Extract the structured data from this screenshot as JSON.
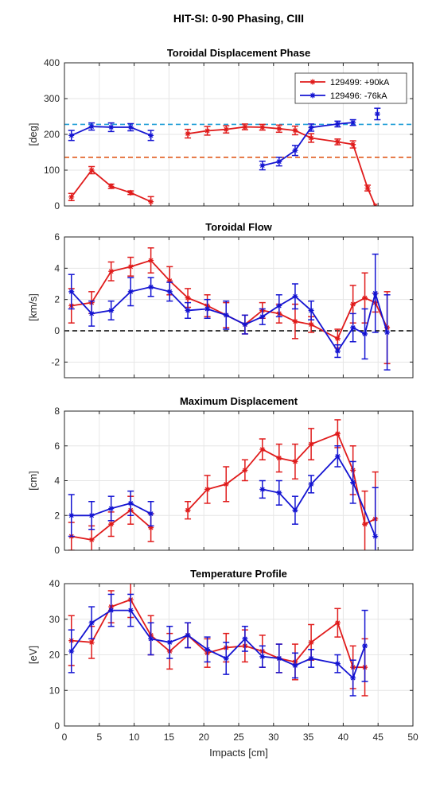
{
  "figure": {
    "suptitle": "HIT-SI: 0-90 Phasing, CIII",
    "xlabel": "Impacts [cm]",
    "xticks": [
      0,
      5,
      10,
      15,
      20,
      25,
      30,
      35,
      40,
      45,
      50
    ],
    "xlim": [
      0,
      50
    ]
  },
  "colors": {
    "red": "#e01b1b",
    "blue": "#1414d2",
    "grid": "#e6e6e6",
    "axis": "#262626"
  },
  "legend": {
    "placement": "top-right",
    "entries": [
      "129499: +90kA",
      "129496: -76kA"
    ]
  },
  "chart_data": [
    {
      "type": "line",
      "title": "Toroidal Displacement Phase",
      "ylabel": "[deg]",
      "ylim": [
        0,
        400
      ],
      "yticks": [
        0,
        100,
        200,
        300,
        400
      ],
      "grid": true,
      "hlines": [
        {
          "y": 228,
          "color": "#1f9ed6",
          "style": "dashed"
        },
        {
          "y": 136,
          "color": "#e0591b",
          "style": "dashed"
        }
      ],
      "series": [
        {
          "name": "129499: +90kA",
          "color": "#e01b1b",
          "segments": [
            [
              [
                1,
                25,
                10
              ],
              [
                3.9,
                100,
                10
              ],
              [
                6.7,
                55,
                6
              ],
              [
                9.5,
                37,
                5
              ],
              [
                12.4,
                12,
                14
              ]
            ],
            [
              [
                17.7,
                202,
                12
              ],
              [
                20.5,
                210,
                12
              ],
              [
                23.2,
                214,
                10
              ],
              [
                25.9,
                221,
                8
              ],
              [
                28.4,
                220,
                8
              ],
              [
                30.8,
                216,
                10
              ],
              [
                33.1,
                211,
                12
              ],
              [
                35.4,
                190,
                12
              ],
              [
                39.2,
                179,
                8
              ],
              [
                41.4,
                172,
                10
              ],
              [
                43.5,
                50,
                8
              ],
              [
                44.6,
                0,
                0
              ]
            ]
          ]
        },
        {
          "name": "129496: -76kA",
          "color": "#1414d2",
          "segments": [
            [
              [
                1,
                197,
                14
              ],
              [
                3.9,
                222,
                10
              ],
              [
                6.7,
                220,
                12
              ],
              [
                9.5,
                220,
                10
              ],
              [
                12.4,
                197,
                14
              ]
            ],
            [
              [
                28.4,
                113,
                12
              ],
              [
                30.8,
                124,
                12
              ],
              [
                33.1,
                155,
                14
              ],
              [
                35.4,
                219,
                10
              ],
              [
                39.2,
                229,
                8
              ],
              [
                41.4,
                233,
                8
              ]
            ],
            [
              [
                44.9,
                257,
                16
              ]
            ]
          ]
        }
      ]
    },
    {
      "type": "line",
      "title": "Toroidal Flow",
      "ylabel": "[km/s]",
      "ylim": [
        -3,
        6
      ],
      "yticks": [
        -2,
        0,
        2,
        4,
        6
      ],
      "grid": true,
      "hlines": [
        {
          "y": 0,
          "color": "#000000",
          "style": "dashed"
        }
      ],
      "series": [
        {
          "name": "129499: +90kA",
          "color": "#e01b1b",
          "segments": [
            [
              [
                1,
                1.6,
                1.1
              ],
              [
                3.9,
                1.8,
                0.7
              ],
              [
                6.7,
                3.8,
                0.6
              ],
              [
                9.5,
                4.1,
                0.6
              ],
              [
                12.4,
                4.5,
                0.8
              ],
              [
                15.1,
                3.2,
                0.9
              ],
              [
                17.7,
                2.1,
                0.6
              ],
              [
                20.5,
                1.6,
                0.7
              ],
              [
                23.2,
                1.0,
                0.8
              ],
              [
                25.9,
                0.4,
                0.6
              ],
              [
                28.4,
                1.3,
                0.5
              ],
              [
                30.8,
                1.1,
                0.6
              ],
              [
                33.1,
                0.6,
                1.1
              ],
              [
                35.4,
                0.4,
                0.5
              ],
              [
                39.2,
                -0.5,
                0.6
              ],
              [
                41.4,
                1.7,
                1.2
              ],
              [
                43.1,
                2.1,
                1.6
              ],
              [
                44.6,
                1.8,
                0.6
              ],
              [
                46.3,
                0.2,
                2.3
              ]
            ]
          ]
        },
        {
          "name": "129496: -76kA",
          "color": "#1414d2",
          "segments": [
            [
              [
                1,
                2.5,
                1.1
              ],
              [
                3.9,
                1.1,
                0.8
              ],
              [
                6.7,
                1.3,
                0.6
              ],
              [
                9.5,
                2.5,
                0.9
              ],
              [
                12.4,
                2.8,
                0.6
              ],
              [
                15.1,
                2.5,
                0.6
              ],
              [
                17.7,
                1.3,
                0.5
              ],
              [
                20.5,
                1.4,
                0.6
              ],
              [
                23.2,
                1.0,
                0.9
              ],
              [
                25.9,
                0.4,
                0.6
              ],
              [
                28.4,
                0.9,
                0.5
              ],
              [
                30.8,
                1.6,
                0.7
              ],
              [
                33.1,
                2.2,
                0.8
              ],
              [
                35.4,
                1.3,
                0.6
              ],
              [
                39.2,
                -1.3,
                0.4
              ],
              [
                41.4,
                0.2,
                0.9
              ],
              [
                43.1,
                -0.2,
                1.6
              ],
              [
                44.6,
                2.4,
                2.5
              ],
              [
                46.3,
                -0.1,
                2.4
              ]
            ]
          ]
        }
      ]
    },
    {
      "type": "line",
      "title": "Maximum Displacement",
      "ylabel": "[cm]",
      "ylim": [
        0,
        8
      ],
      "yticks": [
        0,
        2,
        4,
        6,
        8
      ],
      "grid": true,
      "hlines": [],
      "series": [
        {
          "name": "129499: +90kA",
          "color": "#e01b1b",
          "segments": [
            [
              [
                1,
                0.8,
                0.8
              ],
              [
                3.9,
                0.6,
                0.8
              ],
              [
                6.7,
                1.5,
                0.7
              ],
              [
                9.5,
                2.3,
                0.8
              ],
              [
                12.4,
                1.3,
                0.8
              ]
            ],
            [
              [
                17.7,
                2.3,
                0.5
              ],
              [
                20.5,
                3.5,
                0.8
              ],
              [
                23.2,
                3.8,
                1.0
              ],
              [
                25.9,
                4.6,
                0.6
              ],
              [
                28.4,
                5.8,
                0.6
              ],
              [
                30.8,
                5.3,
                0.8
              ],
              [
                33.1,
                5.1,
                1.0
              ],
              [
                35.4,
                6.1,
                0.9
              ],
              [
                39.2,
                6.7,
                0.8
              ],
              [
                41.4,
                4.6,
                1.4
              ],
              [
                43.1,
                1.5,
                1.9
              ],
              [
                44.6,
                1.8,
                2.7
              ]
            ]
          ]
        },
        {
          "name": "129496: -76kA",
          "color": "#1414d2",
          "segments": [
            [
              [
                1,
                2.0,
                1.2
              ],
              [
                3.9,
                2.0,
                0.8
              ],
              [
                6.7,
                2.4,
                0.7
              ],
              [
                9.5,
                2.7,
                0.7
              ],
              [
                12.4,
                2.1,
                0.7
              ]
            ],
            [
              [
                28.4,
                3.5,
                0.5
              ],
              [
                30.8,
                3.3,
                0.7
              ],
              [
                33.1,
                2.3,
                0.8
              ],
              [
                35.4,
                3.8,
                0.5
              ],
              [
                39.2,
                5.4,
                0.6
              ],
              [
                41.4,
                3.9,
                1.2
              ],
              [
                44.6,
                0.8,
                2.8
              ]
            ]
          ]
        }
      ]
    },
    {
      "type": "line",
      "title": "Temperature Profile",
      "ylabel": "[eV]",
      "ylim": [
        0,
        40
      ],
      "yticks": [
        0,
        10,
        20,
        30,
        40
      ],
      "grid": true,
      "hlines": [],
      "series": [
        {
          "name": "129499: +90kA",
          "color": "#e01b1b",
          "segments": [
            [
              [
                1,
                24,
                7
              ],
              [
                3.9,
                23.5,
                4.5
              ],
              [
                6.7,
                33.5,
                4.5
              ],
              [
                9.5,
                35.5,
                5
              ],
              [
                12.4,
                25.5,
                5.5
              ],
              [
                15.1,
                21,
                5
              ],
              [
                17.7,
                25.5,
                3.5
              ],
              [
                20.5,
                20.5,
                4
              ],
              [
                23.2,
                22,
                4
              ],
              [
                25.9,
                22.5,
                4.5
              ],
              [
                28.4,
                21,
                4.5
              ],
              [
                30.8,
                19,
                4
              ],
              [
                33.1,
                18,
                5
              ],
              [
                35.4,
                23.5,
                5
              ],
              [
                39.2,
                29,
                4
              ],
              [
                41.4,
                16.5,
                6
              ],
              [
                43.1,
                16.5,
                8
              ]
            ]
          ]
        },
        {
          "name": "129496: -76kA",
          "color": "#1414d2",
          "segments": [
            [
              [
                1,
                21,
                6
              ],
              [
                3.9,
                29,
                4.5
              ],
              [
                6.7,
                32.5,
                4.5
              ],
              [
                9.5,
                32.5,
                4.5
              ],
              [
                12.4,
                24.5,
                4.5
              ],
              [
                15.1,
                23.5,
                4.5
              ],
              [
                17.7,
                25.5,
                3.5
              ],
              [
                20.5,
                21.5,
                3.5
              ],
              [
                23.2,
                19,
                4.5
              ],
              [
                25.9,
                24.5,
                3.5
              ],
              [
                28.4,
                19.5,
                3
              ],
              [
                30.8,
                19,
                4
              ],
              [
                33.1,
                17,
                3.5
              ],
              [
                35.4,
                19,
                2.5
              ],
              [
                39.2,
                17.5,
                2.5
              ],
              [
                41.4,
                13.5,
                5
              ],
              [
                43.1,
                22.5,
                10
              ]
            ]
          ]
        }
      ]
    }
  ]
}
